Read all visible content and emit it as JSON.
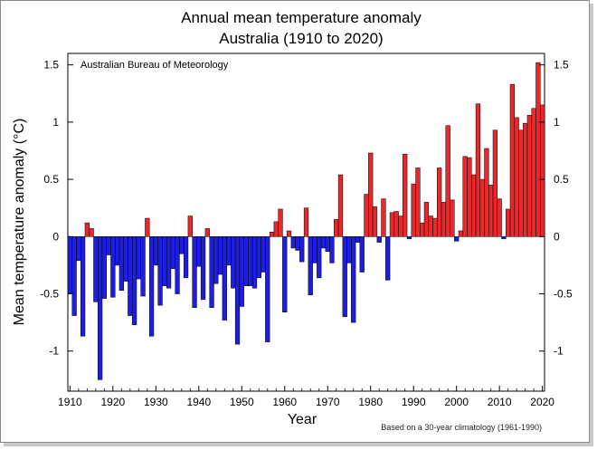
{
  "chart_data": {
    "type": "bar",
    "title": [
      "Annual mean temperature anomaly",
      "Australia (1910 to 2020)"
    ],
    "source_label": "Australian Bureau of Meteorology",
    "xlabel": "Year",
    "ylabel": "Mean temperature anomaly (°C)",
    "footnote": "Based on a 30-year climatology (1961-1990)",
    "xlim": [
      1910,
      2020
    ],
    "ylim": [
      -1.35,
      1.6
    ],
    "x_ticks": [
      1910,
      1920,
      1930,
      1940,
      1950,
      1960,
      1970,
      1980,
      1990,
      2000,
      2010,
      2020
    ],
    "y_ticks": [
      -1,
      -0.5,
      0,
      0.5,
      1,
      1.5
    ],
    "y_tick_labels": [
      "-1",
      "-0.5",
      "0",
      "0.5",
      "1",
      "1.5"
    ],
    "colors": {
      "positive": "#e8282b",
      "negative": "#1e1ee0",
      "outline": "#000000"
    },
    "years": [
      1910,
      1911,
      1912,
      1913,
      1914,
      1915,
      1916,
      1917,
      1918,
      1919,
      1920,
      1921,
      1922,
      1923,
      1924,
      1925,
      1926,
      1927,
      1928,
      1929,
      1930,
      1931,
      1932,
      1933,
      1934,
      1935,
      1936,
      1937,
      1938,
      1939,
      1940,
      1941,
      1942,
      1943,
      1944,
      1945,
      1946,
      1947,
      1948,
      1949,
      1950,
      1951,
      1952,
      1953,
      1954,
      1955,
      1956,
      1957,
      1958,
      1959,
      1960,
      1961,
      1962,
      1963,
      1964,
      1965,
      1966,
      1967,
      1968,
      1969,
      1970,
      1971,
      1972,
      1973,
      1974,
      1975,
      1976,
      1977,
      1978,
      1979,
      1980,
      1981,
      1982,
      1983,
      1984,
      1985,
      1986,
      1987,
      1988,
      1989,
      1990,
      1991,
      1992,
      1993,
      1994,
      1995,
      1996,
      1997,
      1998,
      1999,
      2000,
      2001,
      2002,
      2003,
      2004,
      2005,
      2006,
      2007,
      2008,
      2009,
      2010,
      2011,
      2012,
      2013,
      2014,
      2015,
      2016,
      2017,
      2018,
      2019,
      2020
    ],
    "values": [
      -0.5,
      -0.69,
      -0.21,
      -0.87,
      0.12,
      0.07,
      -0.57,
      -1.25,
      -0.54,
      -0.16,
      -0.53,
      -0.25,
      -0.47,
      -0.39,
      -0.69,
      -0.77,
      -0.37,
      -0.52,
      0.16,
      -0.87,
      -0.25,
      -0.6,
      -0.43,
      -0.45,
      -0.28,
      -0.5,
      -0.15,
      -0.36,
      0.18,
      -0.62,
      -0.26,
      -0.55,
      0.07,
      -0.62,
      -0.41,
      -0.33,
      -0.73,
      -0.25,
      -0.45,
      -0.94,
      -0.61,
      -0.43,
      -0.43,
      -0.45,
      -0.36,
      -0.31,
      -0.92,
      0.04,
      0.13,
      0.24,
      -0.66,
      0.05,
      -0.1,
      -0.12,
      -0.22,
      0.25,
      -0.51,
      -0.23,
      -0.36,
      -0.1,
      -0.13,
      -0.23,
      0.15,
      0.54,
      -0.7,
      -0.23,
      -0.75,
      -0.05,
      -0.31,
      0.37,
      0.73,
      0.26,
      -0.05,
      0.33,
      -0.38,
      0.21,
      0.22,
      0.18,
      0.72,
      -0.02,
      0.46,
      0.6,
      0.12,
      0.3,
      0.18,
      0.16,
      0.6,
      0.3,
      0.97,
      0.32,
      -0.04,
      0.05,
      0.7,
      0.69,
      0.54,
      1.16,
      0.5,
      0.77,
      0.45,
      0.93,
      0.33,
      -0.02,
      0.24,
      1.33,
      1.04,
      0.93,
      0.99,
      1.06,
      1.12,
      1.52,
      1.15
    ]
  }
}
